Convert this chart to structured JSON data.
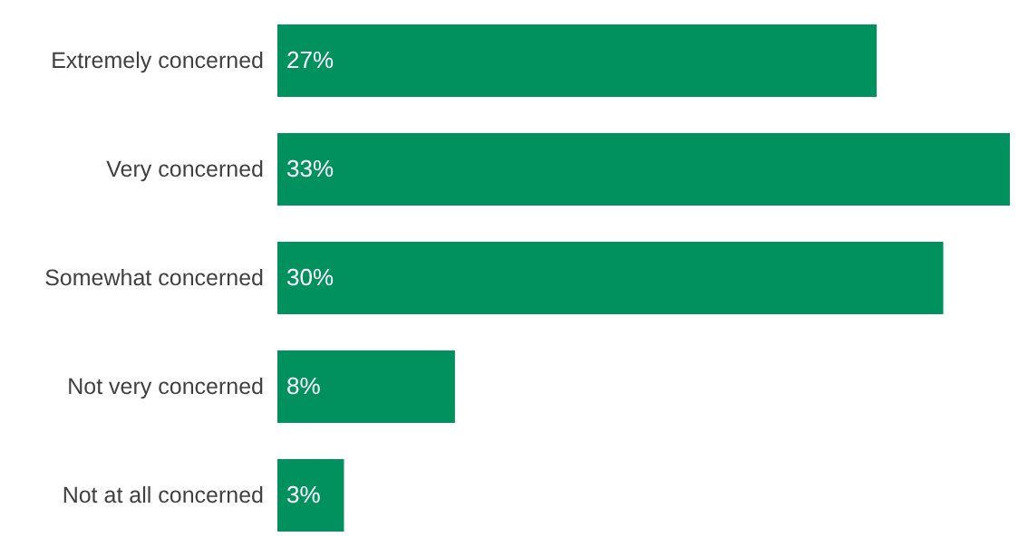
{
  "chart_data": {
    "type": "bar",
    "orientation": "horizontal",
    "categories": [
      "Extremely concerned",
      "Very concerned",
      "Somewhat concerned",
      "Not very concerned",
      "Not at all concerned"
    ],
    "values": [
      27,
      33,
      30,
      8,
      3
    ],
    "value_labels": [
      "27%",
      "33%",
      "30%",
      "8%",
      "3%"
    ],
    "color": "#00915f"
  }
}
